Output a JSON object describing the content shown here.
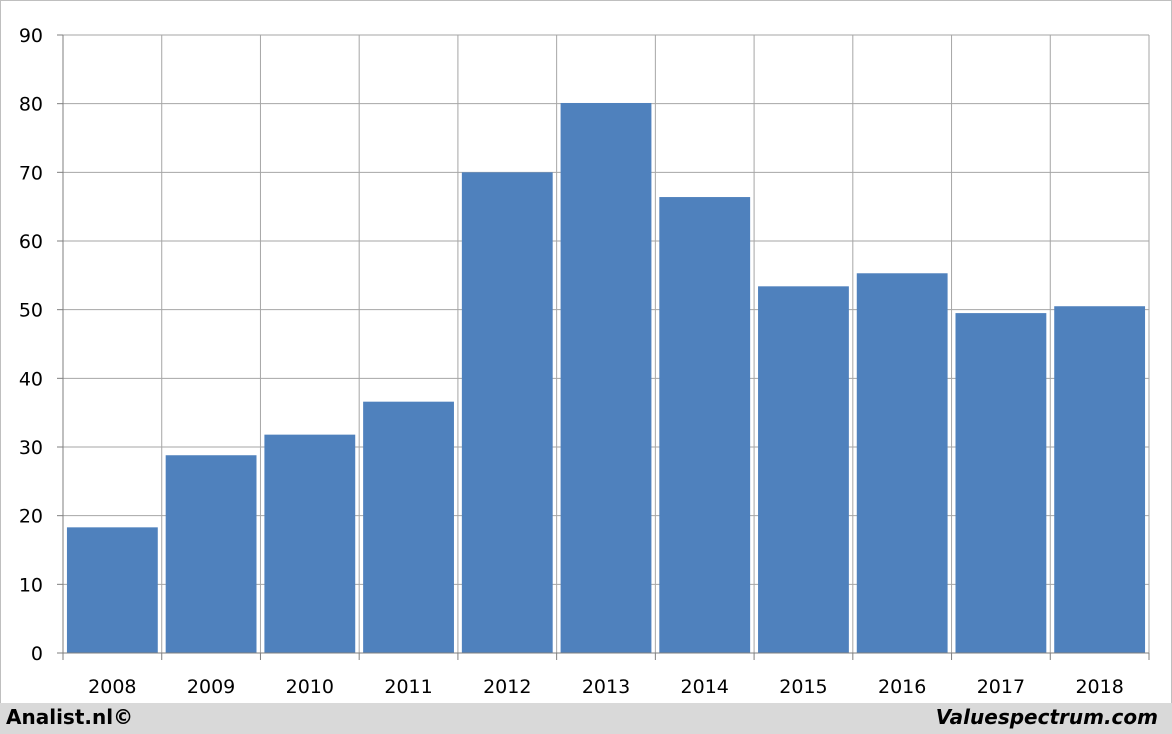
{
  "chart_data": {
    "type": "bar",
    "categories": [
      "2008",
      "2009",
      "2010",
      "2011",
      "2012",
      "2013",
      "2014",
      "2015",
      "2016",
      "2017",
      "2018"
    ],
    "values": [
      18.3,
      28.8,
      31.8,
      36.6,
      70.0,
      80.1,
      66.4,
      53.4,
      55.3,
      49.5,
      50.5
    ],
    "title": "",
    "xlabel": "",
    "ylabel": "",
    "ylim": [
      0,
      90
    ],
    "yticks": [
      0,
      10,
      20,
      30,
      40,
      50,
      60,
      70,
      80,
      90
    ],
    "grid": true,
    "bar_color": "#4f81bd",
    "grid_color": "#a6a6a6"
  },
  "footer": {
    "left_label": "Analist.nl©",
    "right_label": "Valuespectrum.com"
  }
}
